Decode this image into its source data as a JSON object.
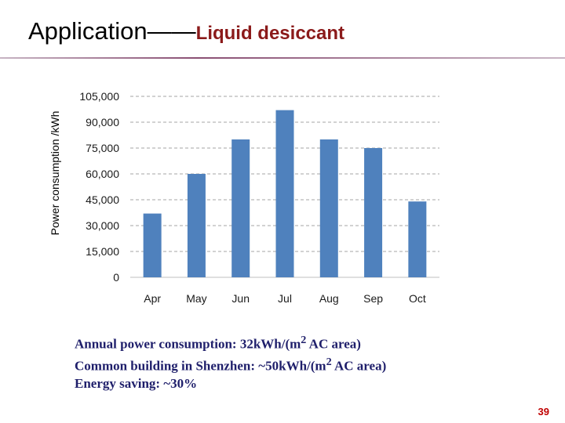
{
  "slide": {
    "title_main": "Application",
    "title_dash": "——",
    "title_sub": "Liquid desiccant",
    "page_number": "39"
  },
  "chart_data": {
    "type": "bar",
    "categories": [
      "Apr",
      "May",
      "Jun",
      "Jul",
      "Aug",
      "Sep",
      "Oct"
    ],
    "values": [
      37000,
      60000,
      80000,
      97000,
      80000,
      75000,
      44000
    ],
    "ylabel": "Power consumption /kWh",
    "xlabel": "",
    "ylim": [
      0,
      105000
    ],
    "yticks": [
      0,
      15000,
      30000,
      45000,
      60000,
      75000,
      90000,
      105000
    ],
    "ytick_labels": [
      "0",
      "15,000",
      "30,000",
      "45,000",
      "60,000",
      "75,000",
      "90,000",
      "105,000"
    ],
    "grid": "horizontal dashed",
    "bar_color": "#4f81bd",
    "grid_color": "#a6a6a6"
  },
  "notes": {
    "line1": {
      "text": "Annual power consumption: 32kWh/(m",
      "sup": "2",
      "tail": " AC area)"
    },
    "line2": {
      "text": "Common building in Shenzhen: ~50kWh/(m",
      "sup": "2",
      "tail": " AC area)"
    },
    "line3": {
      "text": "Energy saving: ~30%"
    }
  }
}
